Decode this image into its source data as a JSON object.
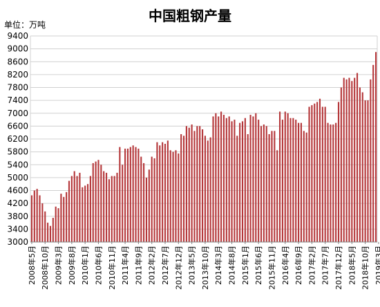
{
  "chart_data": {
    "type": "bar",
    "title": "中国粗钢产量",
    "unit_label": "单位：万吨",
    "ylim": [
      3000,
      9400
    ],
    "y_ticks": [
      3000,
      3400,
      3800,
      4200,
      4600,
      5000,
      5400,
      5800,
      6200,
      6600,
      7000,
      7400,
      7800,
      8200,
      8600,
      9000,
      9400
    ],
    "x_tick_labels": [
      "2008年5月",
      "2008年10月",
      "2009年3月",
      "2009年8月",
      "2010年1月",
      "2010年6月",
      "2010年11月",
      "2011年4月",
      "2011年9月",
      "2012年2月",
      "2012年7月",
      "2012年12月",
      "2013年5月",
      "2013年10月",
      "2014年3月",
      "2014年8月",
      "2015年1月",
      "2015年6月",
      "2015年11月",
      "2016年4月",
      "2016年9月",
      "2017年2月",
      "2017年7月",
      "2017年12月",
      "2018年5月",
      "2018年10月",
      "2019年3月"
    ],
    "x_start": "2008-05",
    "x_step": "1 month",
    "grid": true,
    "legend": "none",
    "values": [
      4450,
      4600,
      4650,
      4450,
      4200,
      3950,
      3600,
      3500,
      3750,
      4100,
      4050,
      4500,
      4400,
      4550,
      4900,
      5050,
      5200,
      5050,
      5150,
      4700,
      4750,
      4800,
      5050,
      5450,
      5500,
      5550,
      5400,
      5200,
      5150,
      4950,
      5050,
      5050,
      5150,
      5950,
      5400,
      5900,
      5900,
      5950,
      6000,
      5950,
      5900,
      5650,
      5450,
      5000,
      5250,
      5650,
      5600,
      6100,
      6000,
      6100,
      6050,
      6150,
      5850,
      5800,
      5850,
      5750,
      6350,
      6300,
      6600,
      6550,
      6650,
      6450,
      6600,
      6600,
      6500,
      6300,
      6150,
      6250,
      6900,
      7000,
      6900,
      7050,
      6950,
      6850,
      6900,
      6750,
      6800,
      6300,
      6700,
      6750,
      6850,
      6350,
      6950,
      6900,
      7000,
      6800,
      6600,
      6650,
      6600,
      6350,
      6450,
      6450,
      5850,
      7050,
      6800,
      7050,
      7000,
      6850,
      6850,
      6800,
      6700,
      6700,
      6450,
      6400,
      7200,
      7250,
      7300,
      7350,
      7450,
      7200,
      7200,
      6700,
      6650,
      6650,
      6700,
      7350,
      7800,
      8100,
      8050,
      8100,
      8000,
      8100,
      8250,
      7800,
      7650,
      7400,
      7400,
      8050,
      8500,
      8900
    ]
  }
}
